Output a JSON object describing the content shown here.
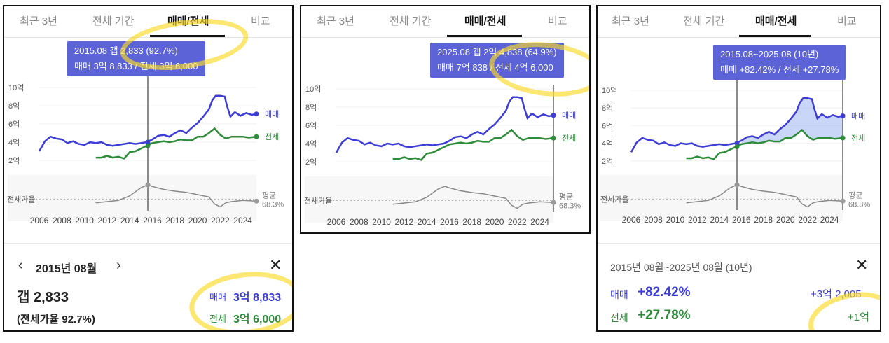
{
  "tabs": [
    "최근 3년",
    "전체 기간",
    "매매/전세",
    "비교"
  ],
  "active_tab_index": 2,
  "colors": {
    "sale": "#3d3dd6",
    "rent": "#2e8b3a",
    "ratio": "#888888",
    "tooltip_bg": "#5b63d6",
    "highlight": "#fada28"
  },
  "axis": {
    "y_ticks": [
      "10억",
      "8억",
      "6억",
      "4억",
      "2억",
      "0"
    ],
    "x_ticks": [
      "2006",
      "2008",
      "2010",
      "2012",
      "2014",
      "2016",
      "2018",
      "2020",
      "2022",
      "2024"
    ],
    "ratio_label": "전세가율",
    "avg_label": "평균",
    "avg_value": "68.3%",
    "series_sale": "매매",
    "series_rent": "전세"
  },
  "chart_data": {
    "type": "line",
    "ylim": [
      0,
      10
    ],
    "ylabel_unit": "억",
    "series": [
      {
        "name": "매매",
        "x": [
          2006.0,
          2006.5,
          2007.0,
          2007.5,
          2008.0,
          2008.5,
          2009.0,
          2009.5,
          2010.0,
          2010.5,
          2011.0,
          2011.5,
          2012.0,
          2012.5,
          2013.0,
          2013.5,
          2014.0,
          2014.5,
          2015.0,
          2015.5,
          2016.0,
          2016.5,
          2017.0,
          2017.5,
          2018.0,
          2018.5,
          2019.0,
          2019.5,
          2020.0,
          2020.5,
          2021.0,
          2021.3,
          2021.6,
          2022.0,
          2022.4,
          2022.6,
          2022.9,
          2023.3,
          2023.8,
          2024.3,
          2024.8,
          2025.2
        ],
        "values": [
          3.0,
          4.1,
          4.6,
          4.4,
          4.3,
          3.9,
          4.1,
          3.8,
          3.7,
          4.0,
          3.9,
          4.0,
          3.7,
          3.6,
          3.7,
          3.8,
          3.9,
          3.8,
          3.9,
          4.0,
          4.3,
          4.7,
          4.8,
          4.6,
          5.0,
          5.3,
          5.0,
          5.6,
          6.1,
          6.8,
          7.6,
          8.6,
          9.1,
          9.1,
          9.0,
          8.0,
          6.8,
          7.3,
          6.9,
          7.2,
          7.0,
          7.1
        ]
      },
      {
        "name": "전세",
        "x": [
          2011.0,
          2011.5,
          2012.0,
          2012.5,
          2013.0,
          2013.5,
          2014.0,
          2014.5,
          2015.0,
          2015.5,
          2016.0,
          2016.5,
          2017.0,
          2017.5,
          2018.0,
          2018.5,
          2019.0,
          2019.5,
          2020.0,
          2020.5,
          2021.0,
          2021.5,
          2022.0,
          2022.5,
          2023.0,
          2023.5,
          2024.0,
          2024.5,
          2025.2
        ],
        "values": [
          2.3,
          2.3,
          2.5,
          2.3,
          2.4,
          2.2,
          2.9,
          3.0,
          3.3,
          3.6,
          3.9,
          4.0,
          4.1,
          4.0,
          4.1,
          4.3,
          4.2,
          4.2,
          4.6,
          4.6,
          5.0,
          5.5,
          4.8,
          4.4,
          4.6,
          4.6,
          4.6,
          4.5,
          4.6
        ]
      },
      {
        "name": "전세가율",
        "x": [
          2011.0,
          2012.0,
          2013.0,
          2014.0,
          2015.0,
          2015.6,
          2016.0,
          2017.0,
          2018.0,
          2019.0,
          2020.0,
          2021.0,
          2021.5,
          2022.0,
          2022.5,
          2023.0,
          2024.0,
          2025.2
        ],
        "values": [
          62,
          64,
          66,
          74,
          88,
          92.7,
          90,
          85,
          82,
          80,
          76,
          72,
          60,
          55,
          62,
          64,
          66,
          64.9
        ]
      }
    ]
  },
  "panel1": {
    "tooltip_line1": "2015.08  갭 2,833 (92.7%)",
    "tooltip_line2": "매매 3억 8,833 / 전세 3억 6,000",
    "cursor_year": 2015.6,
    "prev_icon": "chevron-left-icon",
    "next_icon": "chevron-right-icon",
    "close_icon": "close-icon",
    "month_label": "2015년 08월",
    "gap_label": "갭 2,833",
    "ratio_label": "(전세가율 92.7%)",
    "sale_label": "매매",
    "sale_value": "3억 8,833",
    "rent_label": "전세",
    "rent_value": "3억 6,000"
  },
  "panel2": {
    "tooltip_line1": "2025.08  갭 2억 4,838 (64.9%)",
    "tooltip_line2": "매매 7억 838 / 전세 4억 6,000",
    "cursor_year": 2025.2
  },
  "panel3": {
    "tooltip_line1": "2015.08~2025.08 (10년)",
    "tooltip_line2": "매매 +82.42%  /  전세 +27.78%",
    "range_start": 2015.6,
    "range_end": 2025.2,
    "range_label": "2015년 08월~2025년 08월 (10년)",
    "close_icon": "close-icon",
    "sale_label": "매매",
    "sale_pct": "+82.42%",
    "sale_amt": "+3억 2,005",
    "rent_label": "전세",
    "rent_pct": "+27.78%",
    "rent_amt": "+1억"
  }
}
